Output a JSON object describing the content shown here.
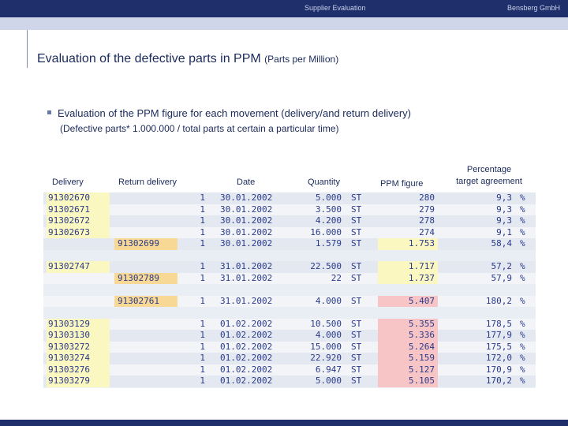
{
  "header": {
    "center_text": "Supplier Evaluation",
    "right_text": "Bensberg GmbH"
  },
  "title": {
    "main": "Evaluation of the defective parts in PPM",
    "sub": "(Parts per Million)"
  },
  "bullet": "Evaluation of the PPM figure for each movement (delivery/and return delivery)",
  "note": "(Defective parts* 1.000.000 / total parts at certain a particular time)",
  "columns": {
    "delivery": "Delivery",
    "return_delivery": "Return delivery",
    "date": "Date",
    "quantity": "Quantity",
    "ppm_figure": "PPM figure",
    "percentage_line1": "Percentage",
    "percentage_line2": "target agreement"
  },
  "rows": [
    {
      "delivery": "91302670",
      "return": "",
      "one": "1",
      "date": "30.01.2002",
      "qty": "5.000",
      "unit": "ST",
      "ppm": "280",
      "pct": "9,3",
      "sym": "%",
      "ppm_style": ""
    },
    {
      "delivery": "91302671",
      "return": "",
      "one": "1",
      "date": "30.01.2002",
      "qty": "3.500",
      "unit": "ST",
      "ppm": "279",
      "pct": "9,3",
      "sym": "%",
      "ppm_style": ""
    },
    {
      "delivery": "91302672",
      "return": "",
      "one": "1",
      "date": "30.01.2002",
      "qty": "4.200",
      "unit": "ST",
      "ppm": "278",
      "pct": "9,3",
      "sym": "%",
      "ppm_style": ""
    },
    {
      "delivery": "91302673",
      "return": "",
      "one": "1",
      "date": "30.01.2002",
      "qty": "16.000",
      "unit": "ST",
      "ppm": "274",
      "pct": "9,1",
      "sym": "%",
      "ppm_style": ""
    },
    {
      "delivery": "",
      "return": "91302699",
      "one": "1",
      "date": "30.01.2002",
      "qty": "1.579",
      "unit": "ST",
      "ppm": "1.753",
      "pct": "58,4",
      "sym": "%",
      "ppm_style": "y"
    },
    {
      "blank": true
    },
    {
      "delivery": "91302747",
      "return": "",
      "one": "1",
      "date": "31.01.2002",
      "qty": "22.500",
      "unit": "ST",
      "ppm": "1.717",
      "pct": "57,2",
      "sym": "%",
      "ppm_style": "y"
    },
    {
      "delivery": "",
      "return": "91302789",
      "one": "1",
      "date": "31.01.2002",
      "qty": "22",
      "unit": "ST",
      "ppm": "1.737",
      "pct": "57,9",
      "sym": "%",
      "ppm_style": "y"
    },
    {
      "blank": true
    },
    {
      "delivery": "",
      "return": "91302761",
      "one": "1",
      "date": "31.01.2002",
      "qty": "4.000",
      "unit": "ST",
      "ppm": "5.407",
      "pct": "180,2",
      "sym": "%",
      "ppm_style": "r"
    },
    {
      "blank": true
    },
    {
      "delivery": "91303129",
      "return": "",
      "one": "1",
      "date": "01.02.2002",
      "qty": "10.500",
      "unit": "ST",
      "ppm": "5.355",
      "pct": "178,5",
      "sym": "%",
      "ppm_style": "r"
    },
    {
      "delivery": "91303130",
      "return": "",
      "one": "1",
      "date": "01.02.2002",
      "qty": "4.000",
      "unit": "ST",
      "ppm": "5.336",
      "pct": "177,9",
      "sym": "%",
      "ppm_style": "r"
    },
    {
      "delivery": "91303272",
      "return": "",
      "one": "1",
      "date": "01.02.2002",
      "qty": "15.000",
      "unit": "ST",
      "ppm": "5.264",
      "pct": "175,5",
      "sym": "%",
      "ppm_style": "r"
    },
    {
      "delivery": "91303274",
      "return": "",
      "one": "1",
      "date": "01.02.2002",
      "qty": "22.920",
      "unit": "ST",
      "ppm": "5.159",
      "pct": "172,0",
      "sym": "%",
      "ppm_style": "r"
    },
    {
      "delivery": "91303276",
      "return": "",
      "one": "1",
      "date": "01.02.2002",
      "qty": "6.947",
      "unit": "ST",
      "ppm": "5.127",
      "pct": "170,9",
      "sym": "%",
      "ppm_style": "r"
    },
    {
      "delivery": "91303279",
      "return": "",
      "one": "1",
      "date": "01.02.2002",
      "qty": "5.000",
      "unit": "ST",
      "ppm": "5.105",
      "pct": "170,2",
      "sym": "%",
      "ppm_style": "r"
    }
  ]
}
